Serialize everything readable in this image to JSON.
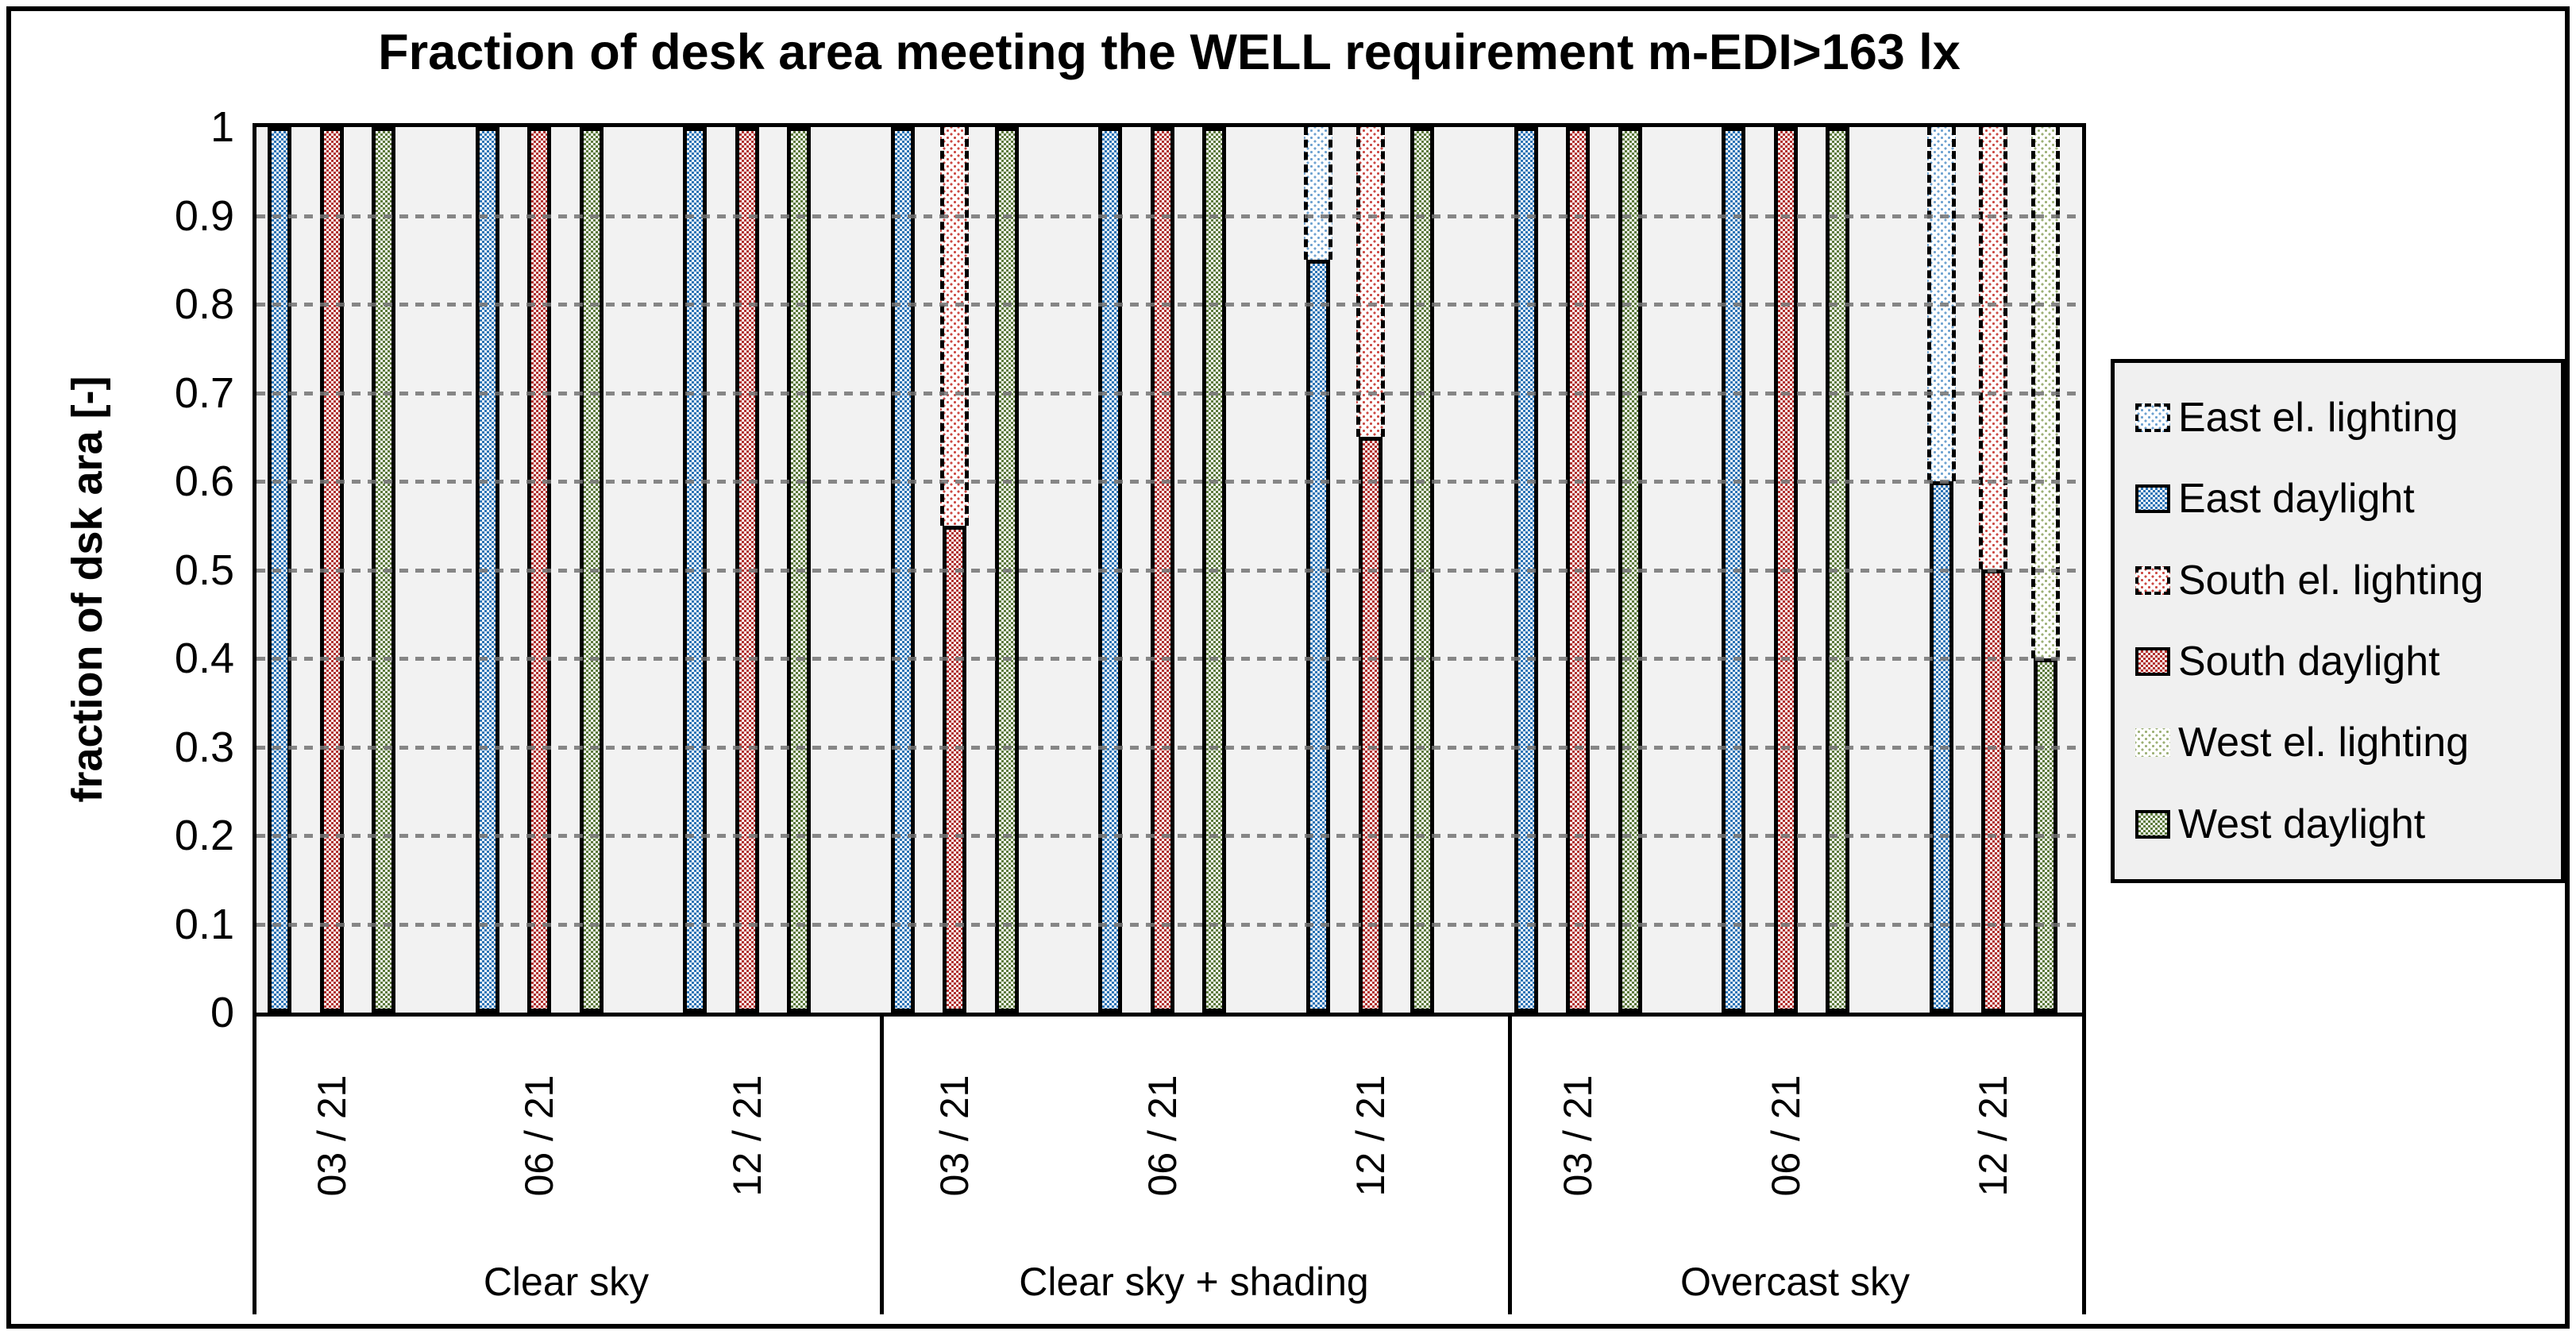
{
  "title": "Fraction of desk area meeting the WELL requirement m-EDI>163 lx",
  "y_axis": {
    "title": "fraction of dsk ara  [-]",
    "tick_labels": [
      "1",
      "0.9",
      "0.8",
      "0.7",
      "0.6",
      "0.5",
      "0.4",
      "0.3",
      "0.2",
      "0.1",
      "0"
    ]
  },
  "x_axis": {
    "group_labels": [
      "Clear sky",
      "Clear sky + shading",
      "Overcast sky"
    ],
    "date_labels": [
      "03 / 21",
      "06 / 21",
      "12 / 21"
    ]
  },
  "legend": {
    "items": [
      {
        "label": "East el. lighting",
        "swatch": "dots-blue",
        "border": "dashed"
      },
      {
        "label": "East daylight",
        "swatch": "checker-blue",
        "border": "solid"
      },
      {
        "label": "South el. lighting",
        "swatch": "dots-red",
        "border": "dashed"
      },
      {
        "label": "South daylight",
        "swatch": "checker-red",
        "border": "solid"
      },
      {
        "label": "West el. lighting",
        "swatch": "dots-green",
        "border": "none"
      },
      {
        "label": "West daylight",
        "swatch": "checker-green",
        "border": "solid"
      }
    ]
  },
  "colors": {
    "east_daylight": "#2E75B6",
    "south_daylight": "#B23331",
    "west_daylight": "#5E7B3E",
    "east_el_lighting": "#6FA3D1",
    "south_el_lighting": "#CC4A44",
    "west_el_lighting": "#9DB077",
    "plot_background": "#F2F2F2",
    "legend_background": "#F0F0F0",
    "gridline": "#737373"
  },
  "chart_data": {
    "type": "bar",
    "stacked": true,
    "title": "Fraction of desk area meeting the WELL requirement m-EDI>163 lx",
    "ylabel": "fraction of dsk ara  [-]",
    "ylim": [
      0,
      1
    ],
    "grid": "horizontal-dashed",
    "legend_position": "right",
    "group_labels": [
      "Clear sky",
      "Clear sky + shading",
      "Overcast sky"
    ],
    "categories": [
      "03 / 21",
      "06 / 21",
      "12 / 21",
      "03 / 21",
      "06 / 21",
      "12 / 21",
      "03 / 21",
      "06 / 21",
      "12 / 21"
    ],
    "series": [
      {
        "name": "East daylight",
        "values": [
          1,
          1,
          1,
          1,
          1,
          0.85,
          1,
          1,
          0.6
        ]
      },
      {
        "name": "East el. lighting",
        "values": [
          0,
          0,
          0,
          0,
          0,
          0.15,
          0,
          0,
          0.4
        ]
      },
      {
        "name": "South daylight",
        "values": [
          1,
          1,
          1,
          0.55,
          1,
          0.65,
          1,
          1,
          0.5
        ]
      },
      {
        "name": "South el. lighting",
        "values": [
          0,
          0,
          0,
          0.45,
          0,
          0.35,
          0,
          0,
          0.5
        ]
      },
      {
        "name": "West daylight",
        "values": [
          1,
          1,
          1,
          1,
          1,
          1,
          1,
          1,
          0.4
        ]
      },
      {
        "name": "West el. lighting",
        "values": [
          0,
          0,
          0,
          0,
          0,
          0,
          0,
          0,
          0.6
        ]
      }
    ]
  }
}
